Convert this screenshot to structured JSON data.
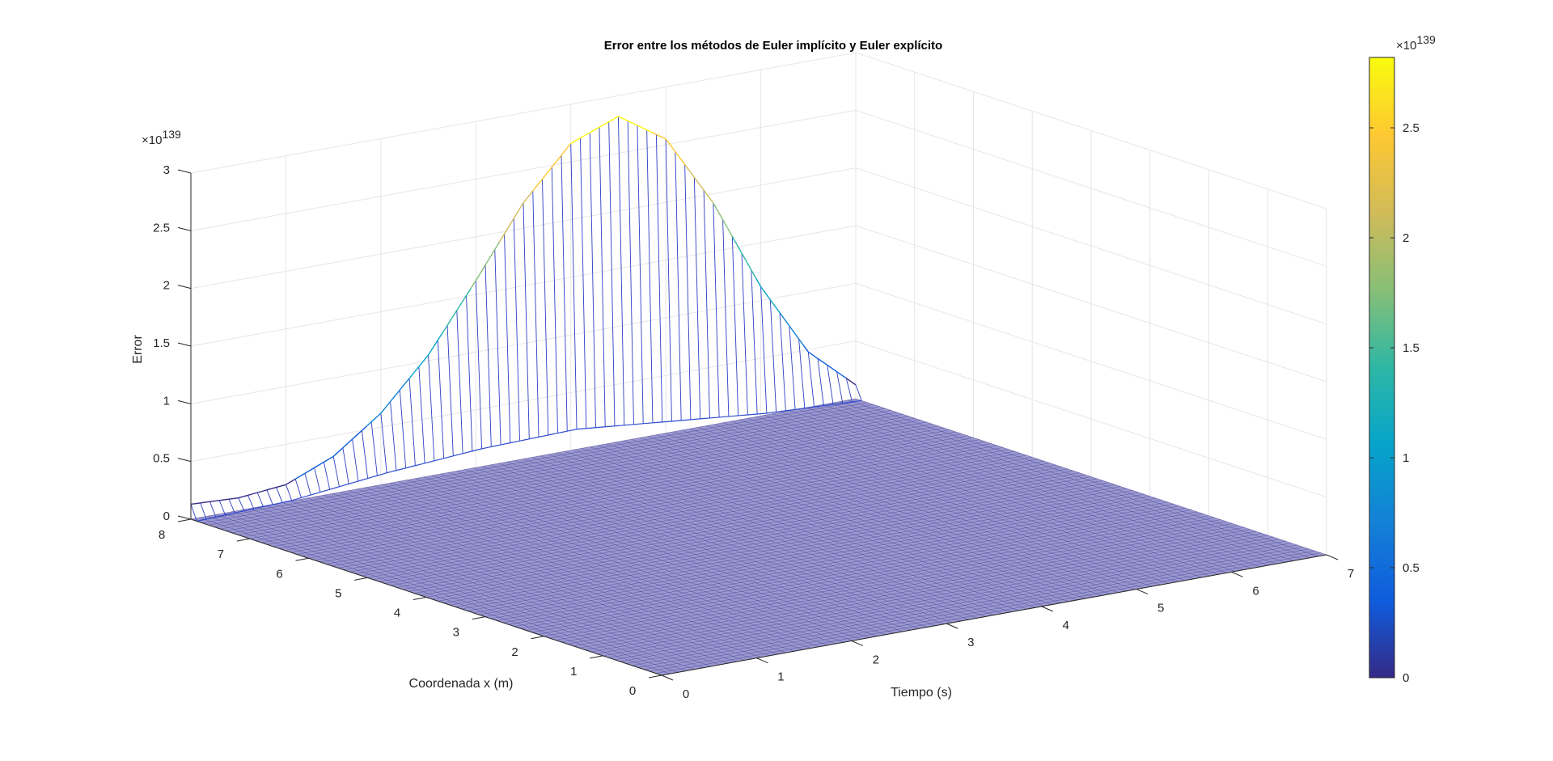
{
  "chart_data": {
    "type": "surface",
    "title": "Error entre los métodos de Euler implícito y Euler explícito",
    "xlabel": "Tiempo (s)",
    "ylabel": "Coordenada x (m)",
    "zlabel": "Error",
    "xlim": [
      0,
      7
    ],
    "ylim": [
      0,
      8
    ],
    "zlim": [
      0,
      3
    ],
    "x_ticks": [
      "0",
      "1",
      "2",
      "3",
      "4",
      "5",
      "6",
      "7"
    ],
    "y_ticks": [
      "0",
      "1",
      "2",
      "3",
      "4",
      "5",
      "6",
      "7",
      "8"
    ],
    "z_ticks": [
      "0",
      "0.5",
      "1",
      "1.5",
      "2",
      "2.5",
      "3"
    ],
    "z_exponent": "139",
    "exponent_base": "×10",
    "colorbar": {
      "ticks": [
        "0",
        "0.5",
        "1",
        "1.5",
        "2",
        "2.5"
      ],
      "range": [
        0,
        2.82
      ],
      "exponent": "139",
      "colormap": "parula"
    },
    "grid": true,
    "surface": {
      "description_of_shape": "error is ~0 everywhere except along the far edge x = 8 m, where it forms a Gaussian-like ridge over time",
      "ridge_at_x": 8,
      "ridge_profile": [
        {
          "t": 0.0,
          "error": 0.13
        },
        {
          "t": 0.5,
          "error": 0.11
        },
        {
          "t": 1.0,
          "error": 0.15
        },
        {
          "t": 1.5,
          "error": 0.32
        },
        {
          "t": 2.0,
          "error": 0.62
        },
        {
          "t": 2.5,
          "error": 1.05
        },
        {
          "t": 3.0,
          "error": 1.62
        },
        {
          "t": 3.5,
          "error": 2.22
        },
        {
          "t": 4.0,
          "error": 2.66
        },
        {
          "t": 4.5,
          "error": 2.82
        },
        {
          "t": 5.0,
          "error": 2.55
        },
        {
          "t": 5.5,
          "error": 1.92
        },
        {
          "t": 6.0,
          "error": 1.12
        },
        {
          "t": 6.5,
          "error": 0.48
        },
        {
          "t": 7.0,
          "error": 0.12
        }
      ],
      "secondary_row_x": 7.9,
      "secondary_profile": [
        {
          "t": 0.0,
          "error": 0.0
        },
        {
          "t": 1.0,
          "error": 0.03
        },
        {
          "t": 2.0,
          "error": 0.12
        },
        {
          "t": 3.0,
          "error": 0.18
        },
        {
          "t": 4.0,
          "error": 0.2
        },
        {
          "t": 5.0,
          "error": 0.12
        },
        {
          "t": 6.0,
          "error": 0.04
        },
        {
          "t": 7.0,
          "error": 0.0
        }
      ]
    }
  }
}
